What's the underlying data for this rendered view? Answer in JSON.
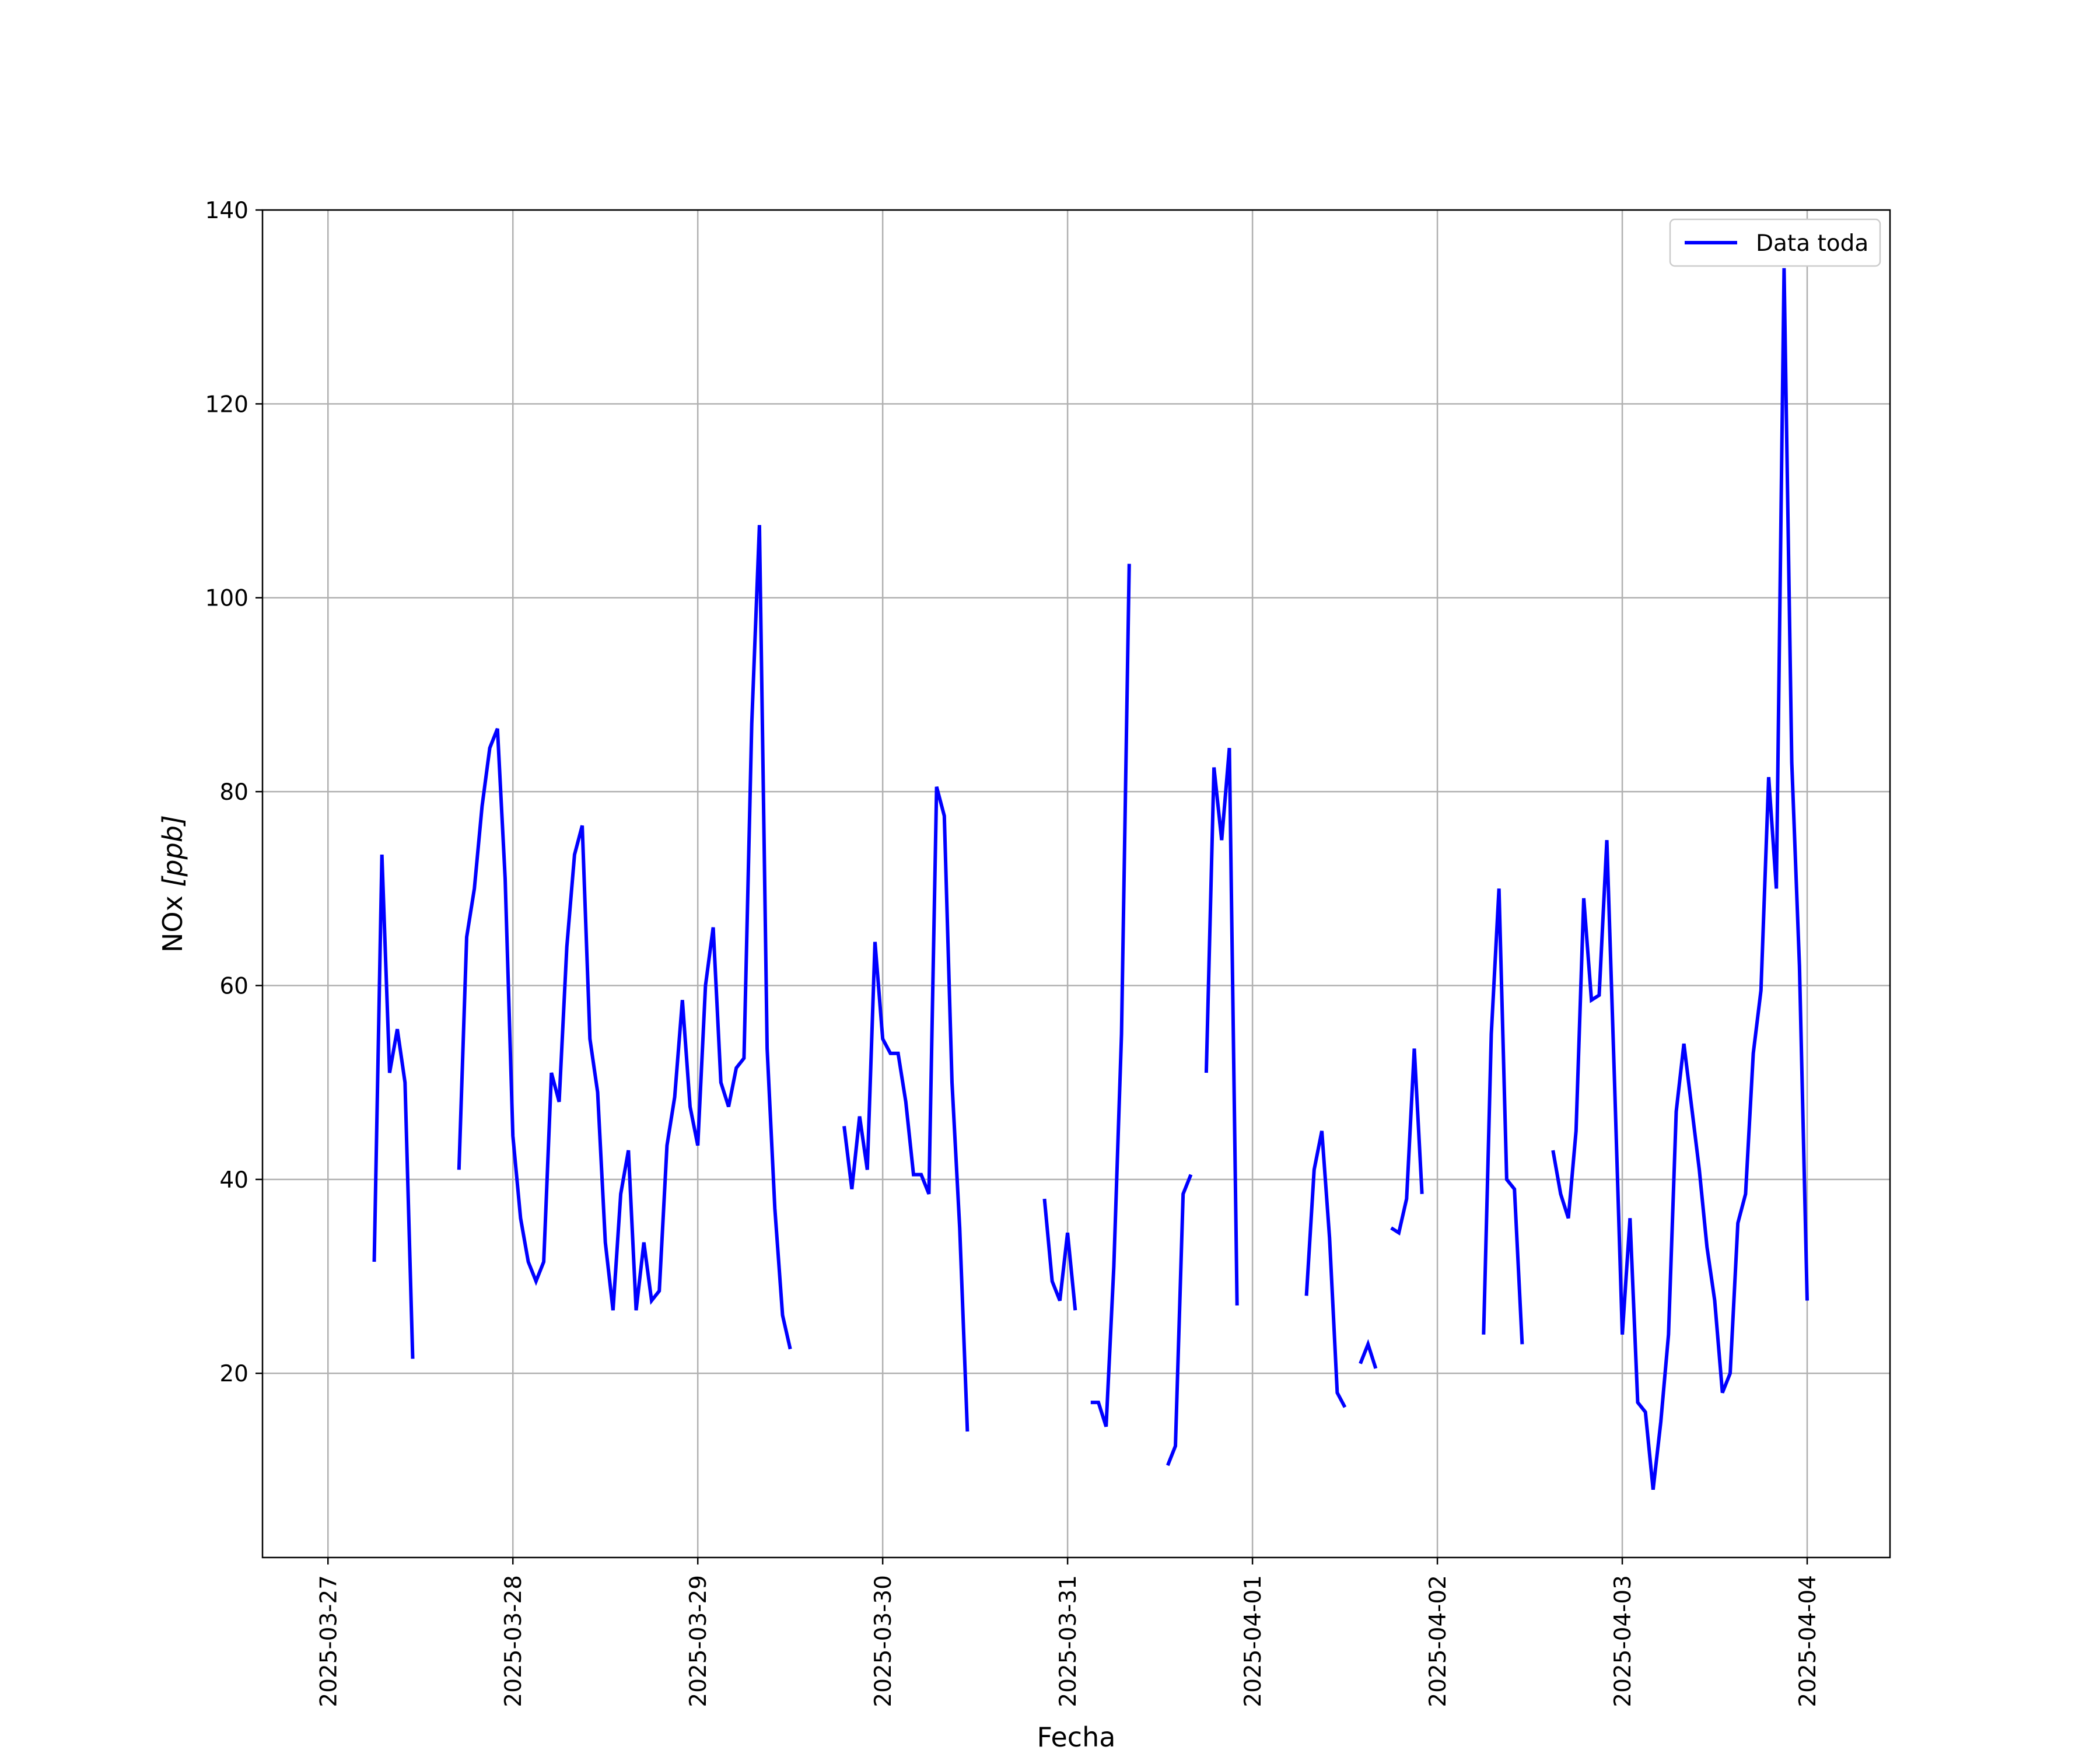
{
  "chart_data": {
    "type": "line",
    "xlabel": "Fecha",
    "ylabel_main": "NOx ",
    "ylabel_unit": "[ppb]",
    "ylim": [
      1,
      140
    ],
    "yticks": [
      20,
      40,
      60,
      80,
      100,
      120,
      140
    ],
    "xlim": [
      "2025-03-26T15:30",
      "2025-04-04T10:45"
    ],
    "xticks": [
      "2025-03-27",
      "2025-03-28",
      "2025-03-29",
      "2025-03-30",
      "2025-03-31",
      "2025-04-01",
      "2025-04-02",
      "2025-04-03",
      "2025-04-04"
    ],
    "grid": true,
    "legend_position": "top-right",
    "series": [
      {
        "name": "Data toda",
        "color": "#0000ff",
        "segments": [
          [
            [
              "2025-03-27T06:00",
              31.5
            ],
            [
              "2025-03-27T07:00",
              73.5
            ],
            [
              "2025-03-27T08:00",
              51
            ],
            [
              "2025-03-27T09:00",
              55.5
            ],
            [
              "2025-03-27T10:00",
              50
            ],
            [
              "2025-03-27T11:00",
              21.5
            ]
          ],
          [
            [
              "2025-03-27T17:00",
              41
            ],
            [
              "2025-03-27T18:00",
              65
            ],
            [
              "2025-03-27T19:00",
              70
            ],
            [
              "2025-03-27T20:00",
              78.5
            ],
            [
              "2025-03-27T21:00",
              84.5
            ],
            [
              "2025-03-27T22:00",
              86.5
            ],
            [
              "2025-03-27T23:00",
              71
            ],
            [
              "2025-03-28T00:00",
              44.5
            ],
            [
              "2025-03-28T01:00",
              36
            ],
            [
              "2025-03-28T02:00",
              31.5
            ],
            [
              "2025-03-28T03:00",
              29.5
            ],
            [
              "2025-03-28T04:00",
              31.5
            ],
            [
              "2025-03-28T05:00",
              51
            ],
            [
              "2025-03-28T06:00",
              48
            ],
            [
              "2025-03-28T07:00",
              64
            ],
            [
              "2025-03-28T08:00",
              73.5
            ],
            [
              "2025-03-28T09:00",
              76.5
            ],
            [
              "2025-03-28T10:00",
              54.5
            ],
            [
              "2025-03-28T11:00",
              49
            ],
            [
              "2025-03-28T12:00",
              33.5
            ],
            [
              "2025-03-28T13:00",
              26.5
            ],
            [
              "2025-03-28T14:00",
              38.5
            ],
            [
              "2025-03-28T15:00",
              43
            ],
            [
              "2025-03-28T16:00",
              26.5
            ],
            [
              "2025-03-28T17:00",
              33.5
            ],
            [
              "2025-03-28T18:00",
              27.5
            ],
            [
              "2025-03-28T19:00",
              28.5
            ],
            [
              "2025-03-28T20:00",
              43.5
            ],
            [
              "2025-03-28T21:00",
              48.5
            ],
            [
              "2025-03-28T22:00",
              58.5
            ],
            [
              "2025-03-28T23:00",
              47.5
            ],
            [
              "2025-03-29T00:00",
              43.5
            ],
            [
              "2025-03-29T01:00",
              60
            ],
            [
              "2025-03-29T02:00",
              66
            ],
            [
              "2025-03-29T03:00",
              50
            ],
            [
              "2025-03-29T04:00",
              47.5
            ],
            [
              "2025-03-29T05:00",
              51.5
            ],
            [
              "2025-03-29T06:00",
              52.5
            ],
            [
              "2025-03-29T07:00",
              87
            ],
            [
              "2025-03-29T08:00",
              107.5
            ],
            [
              "2025-03-29T09:00",
              53.5
            ],
            [
              "2025-03-29T10:00",
              37
            ],
            [
              "2025-03-29T11:00",
              26
            ],
            [
              "2025-03-29T12:00",
              22.5
            ]
          ],
          [
            [
              "2025-03-29T19:00",
              45.5
            ],
            [
              "2025-03-29T20:00",
              39
            ],
            [
              "2025-03-29T21:00",
              46.5
            ],
            [
              "2025-03-29T22:00",
              41
            ],
            [
              "2025-03-29T23:00",
              64.5
            ],
            [
              "2025-03-30T00:00",
              54.5
            ],
            [
              "2025-03-30T01:00",
              53
            ],
            [
              "2025-03-30T02:00",
              53
            ],
            [
              "2025-03-30T03:00",
              48
            ],
            [
              "2025-03-30T04:00",
              40.5
            ],
            [
              "2025-03-30T05:00",
              40.5
            ],
            [
              "2025-03-30T06:00",
              38.5
            ],
            [
              "2025-03-30T07:00",
              80.5
            ],
            [
              "2025-03-30T08:00",
              77.5
            ],
            [
              "2025-03-30T09:00",
              50
            ],
            [
              "2025-03-30T10:00",
              35
            ],
            [
              "2025-03-30T11:00",
              14
            ]
          ],
          [
            [
              "2025-03-30T21:00",
              38
            ],
            [
              "2025-03-30T22:00",
              29.5
            ],
            [
              "2025-03-30T23:00",
              27.5
            ],
            [
              "2025-03-31T00:00",
              34.5
            ],
            [
              "2025-03-31T01:00",
              26.5
            ]
          ],
          [
            [
              "2025-03-31T03:00",
              17
            ],
            [
              "2025-03-31T04:00",
              17
            ],
            [
              "2025-03-31T05:00",
              14.5
            ],
            [
              "2025-03-31T06:00",
              31
            ],
            [
              "2025-03-31T07:00",
              55
            ],
            [
              "2025-03-31T08:00",
              103.5
            ]
          ],
          [
            [
              "2025-03-31T13:00",
              10.5
            ],
            [
              "2025-03-31T14:00",
              12.5
            ],
            [
              "2025-03-31T15:00",
              38.5
            ],
            [
              "2025-03-31T16:00",
              40.5
            ]
          ],
          [
            [
              "2025-03-31T18:00",
              51
            ],
            [
              "2025-03-31T19:00",
              82.5
            ],
            [
              "2025-03-31T20:00",
              75
            ],
            [
              "2025-03-31T21:00",
              84.5
            ],
            [
              "2025-03-31T22:00",
              27
            ]
          ],
          [
            [
              "2025-04-01T07:00",
              28
            ],
            [
              "2025-04-01T08:00",
              41
            ],
            [
              "2025-04-01T09:00",
              45
            ],
            [
              "2025-04-01T10:00",
              34
            ],
            [
              "2025-04-01T11:00",
              18
            ],
            [
              "2025-04-01T12:00",
              16.5
            ]
          ],
          [
            [
              "2025-04-01T14:00",
              21
            ],
            [
              "2025-04-01T15:00",
              23
            ],
            [
              "2025-04-01T16:00",
              20.5
            ]
          ],
          [
            [
              "2025-04-01T18:00",
              35
            ],
            [
              "2025-04-01T19:00",
              34.5
            ],
            [
              "2025-04-01T20:00",
              38
            ],
            [
              "2025-04-01T21:00",
              53.5
            ],
            [
              "2025-04-01T22:00",
              38.5
            ]
          ],
          [
            [
              "2025-04-02T06:00",
              24
            ],
            [
              "2025-04-02T07:00",
              55
            ],
            [
              "2025-04-02T08:00",
              70
            ],
            [
              "2025-04-02T09:00",
              40
            ],
            [
              "2025-04-02T10:00",
              39
            ],
            [
              "2025-04-02T11:00",
              23
            ]
          ],
          [
            [
              "2025-04-02T15:00",
              43
            ],
            [
              "2025-04-02T16:00",
              38.5
            ],
            [
              "2025-04-02T17:00",
              36
            ],
            [
              "2025-04-02T18:00",
              45
            ],
            [
              "2025-04-02T19:00",
              69
            ],
            [
              "2025-04-02T20:00",
              58.5
            ],
            [
              "2025-04-02T21:00",
              59
            ],
            [
              "2025-04-02T22:00",
              75
            ],
            [
              "2025-04-02T23:00",
              50
            ],
            [
              "2025-04-03T00:00",
              24
            ],
            [
              "2025-04-03T01:00",
              36
            ],
            [
              "2025-04-03T02:00",
              17
            ],
            [
              "2025-04-03T03:00",
              16
            ],
            [
              "2025-04-03T04:00",
              8
            ],
            [
              "2025-04-03T05:00",
              15
            ],
            [
              "2025-04-03T06:00",
              24
            ],
            [
              "2025-04-03T07:00",
              47
            ],
            [
              "2025-04-03T08:00",
              54
            ],
            [
              "2025-04-03T09:00",
              47.5
            ],
            [
              "2025-04-03T10:00",
              41
            ],
            [
              "2025-04-03T11:00",
              33
            ],
            [
              "2025-04-03T12:00",
              27.5
            ],
            [
              "2025-04-03T13:00",
              18
            ],
            [
              "2025-04-03T14:00",
              20
            ],
            [
              "2025-04-03T15:00",
              35.5
            ],
            [
              "2025-04-03T16:00",
              38.5
            ],
            [
              "2025-04-03T17:00",
              53
            ],
            [
              "2025-04-03T18:00",
              59.5
            ],
            [
              "2025-04-03T19:00",
              81.5
            ],
            [
              "2025-04-03T20:00",
              70
            ],
            [
              "2025-04-03T21:00",
              134
            ],
            [
              "2025-04-03T22:00",
              83
            ],
            [
              "2025-04-03T23:00",
              62
            ],
            [
              "2025-04-04T00:00",
              27.5
            ]
          ]
        ]
      }
    ]
  }
}
